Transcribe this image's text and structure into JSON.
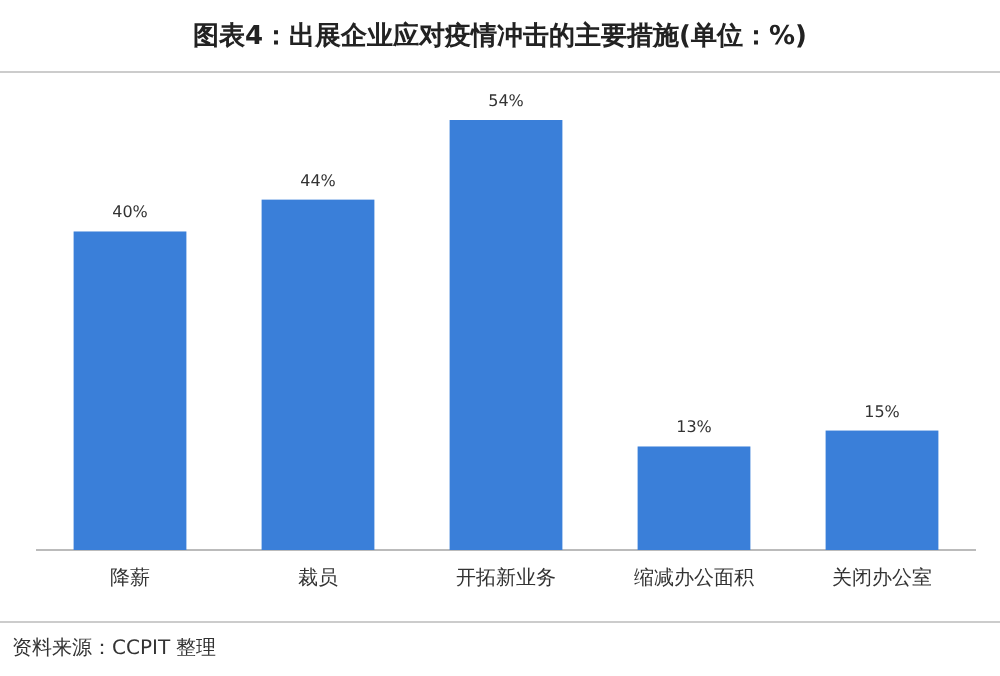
{
  "chart_data": {
    "type": "bar",
    "title": "图表4：出展企业应对疫情冲击的主要措施(单位：%)",
    "categories": [
      "降薪",
      "裁员",
      "开拓新业务",
      "缩减办公面积",
      "关闭办公室"
    ],
    "values": [
      40,
      44,
      54,
      13,
      15
    ],
    "value_labels": [
      "40%",
      "44%",
      "54%",
      "13%",
      "15%"
    ],
    "color": "#3a7fd9",
    "annotations": [
      "资料来源：CCPIT 整理"
    ]
  }
}
